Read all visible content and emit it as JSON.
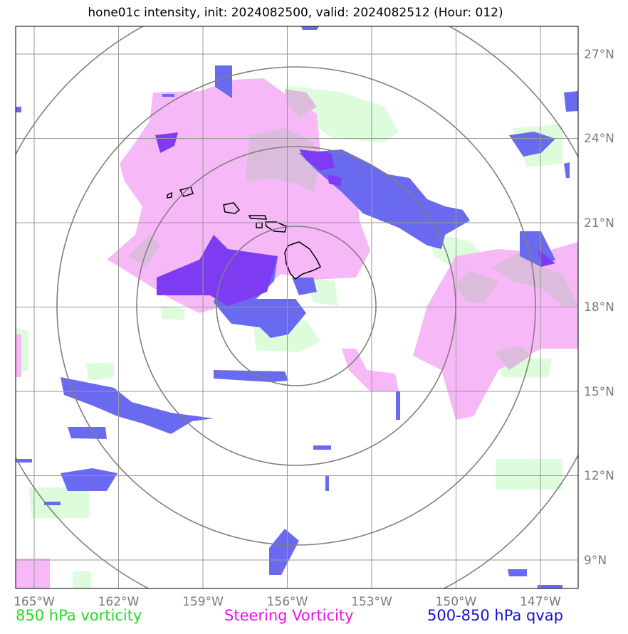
{
  "title": "hone01c intensity, init: 2024082500, valid: 2024082512 (Hour: 012)",
  "legend": {
    "vorticity850": {
      "label": "850 hPa vorticity",
      "color": "#22dd22"
    },
    "steering": {
      "label": "Steering Vorticity",
      "color": "#ee11ee"
    },
    "qvap": {
      "label": "500-850 hPa qvap",
      "color": "#1111dd"
    }
  },
  "map": {
    "lon_range": [
      -165.5,
      -145.5
    ],
    "lat_range": [
      8,
      28
    ],
    "lon_ticks": [
      "165°W",
      "162°W",
      "159°W",
      "156°W",
      "153°W",
      "150°W",
      "147°W"
    ],
    "lat_ticks": [
      "27°N",
      "24°N",
      "21°N",
      "18°N",
      "15°N",
      "12°N",
      "9°N"
    ],
    "lon_tick_values": [
      -165,
      -162,
      -159,
      -156,
      -153,
      -150,
      -147
    ],
    "lat_tick_values": [
      27,
      24,
      21,
      18,
      15,
      12,
      9
    ],
    "range_rings_count": 4,
    "grid": true,
    "fill_colors": {
      "vorticity850": "#dcfcdc",
      "steering": "#f7b8f7",
      "qvap": "#6a6af0",
      "qvap_strong": "#7d3cf2",
      "overlap": "#dcbcdc"
    }
  }
}
